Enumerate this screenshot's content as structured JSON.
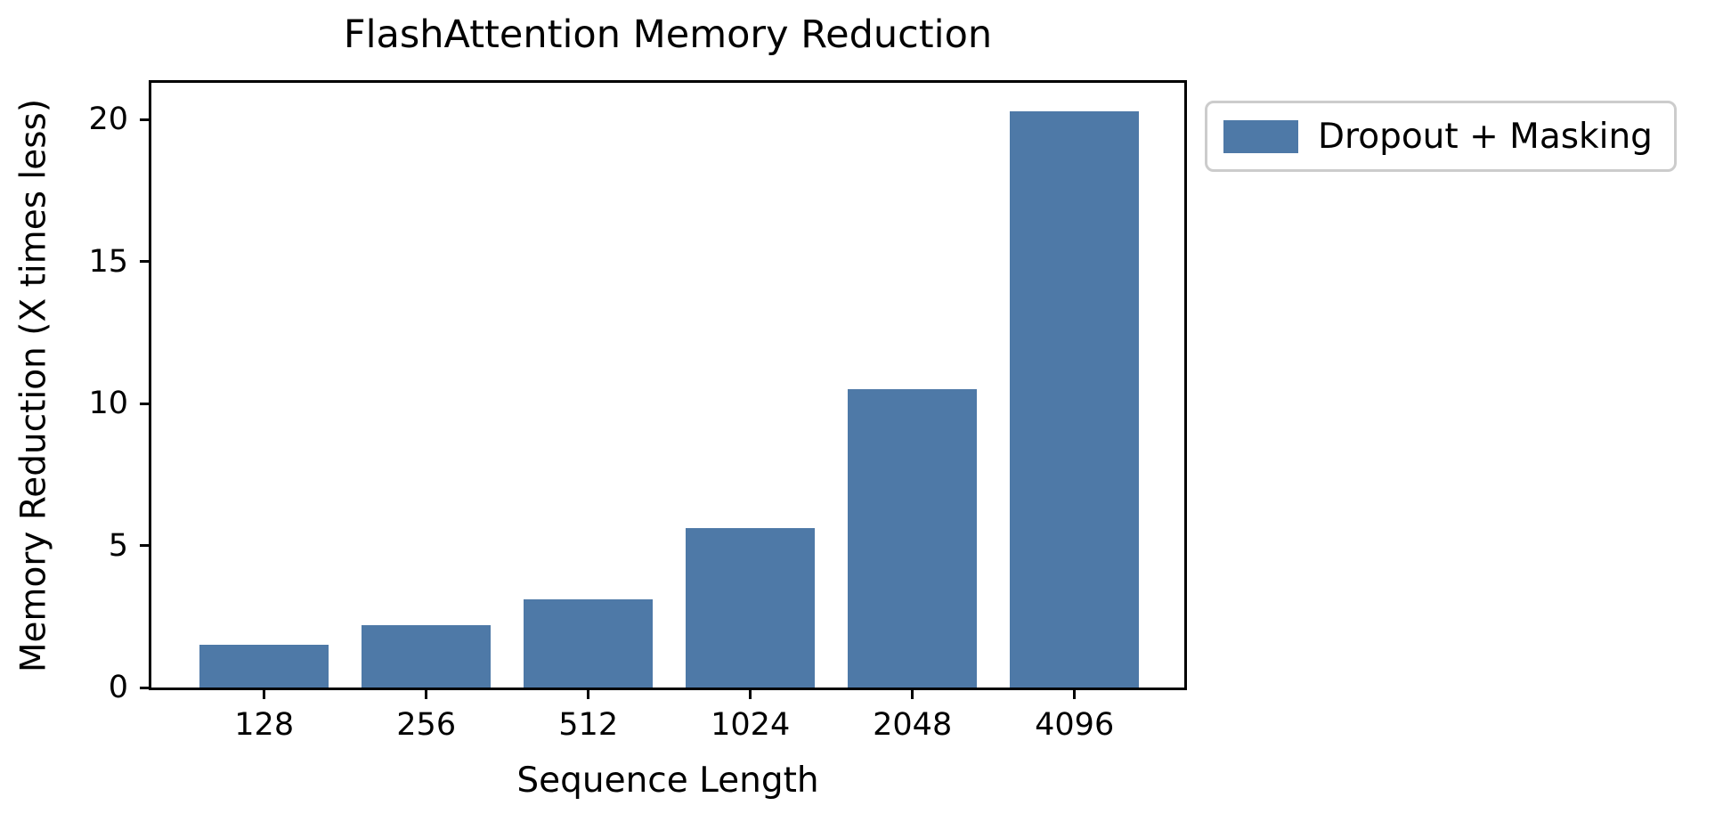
{
  "chart_data": {
    "type": "bar",
    "title": "FlashAttention Memory Reduction",
    "xlabel": "Sequence Length",
    "ylabel": "Memory Reduction (X times less)",
    "categories": [
      "128",
      "256",
      "512",
      "1024",
      "2048",
      "4096"
    ],
    "series": [
      {
        "name": "Dropout + Masking",
        "color": "#4e79a7",
        "values": [
          1.5,
          2.2,
          3.1,
          5.6,
          10.5,
          20.3
        ]
      }
    ],
    "ylim": [
      0,
      21.3
    ],
    "yticks": [
      "0",
      "5",
      "10",
      "15",
      "20"
    ],
    "grid": false,
    "legend": {
      "position": "outside-upper-right",
      "entries": [
        {
          "label": "Dropout + Masking",
          "color": "#4e79a7"
        }
      ]
    },
    "colors": {
      "axis": "#000000",
      "text": "#000000",
      "legend_border": "#cccccc",
      "background": "#ffffff"
    }
  }
}
